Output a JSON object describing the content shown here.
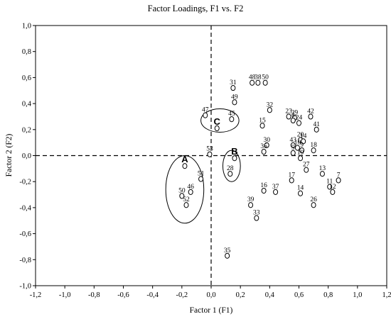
{
  "chart_data": {
    "type": "scatter",
    "title": "Factor Loadings, F1 vs. F2",
    "xlabel": "Factor 1 (F1)",
    "ylabel": "Factor 2 (F2)",
    "xlim": [
      -1.2,
      1.2
    ],
    "ylim": [
      -1.0,
      1.0
    ],
    "x_ticks": [
      "-1,2",
      "-1,0",
      "-0,8",
      "-0,6",
      "-0,4",
      "-0,2",
      "0,0",
      "0,2",
      "0,4",
      "0,6",
      "0,8",
      "1,0",
      "1,2"
    ],
    "y_ticks": [
      "-1,0",
      "-0,8",
      "-0,6",
      "-0,4",
      "-0,2",
      "0,0",
      "0,2",
      "0,4",
      "0,6",
      "0,8",
      "1,0"
    ],
    "grid": false,
    "reference_lines": {
      "x": 0,
      "y": 0,
      "style": "dashed"
    },
    "points": [
      {
        "label": "48",
        "x": 0.28,
        "y": 0.56
      },
      {
        "label": "38",
        "x": 0.32,
        "y": 0.56
      },
      {
        "label": "50",
        "x": 0.37,
        "y": 0.56
      },
      {
        "label": "31",
        "x": 0.15,
        "y": 0.52
      },
      {
        "label": "49",
        "x": 0.16,
        "y": 0.41
      },
      {
        "label": "47",
        "x": -0.04,
        "y": 0.31
      },
      {
        "label": "C",
        "x": 0.04,
        "y": 0.21
      },
      {
        "label": "45",
        "x": 0.14,
        "y": 0.28
      },
      {
        "label": "32",
        "x": 0.4,
        "y": 0.35
      },
      {
        "label": "15",
        "x": 0.35,
        "y": 0.23
      },
      {
        "label": "23",
        "x": 0.53,
        "y": 0.3
      },
      {
        "label": "29",
        "x": 0.57,
        "y": 0.29
      },
      {
        "label": "4",
        "x": 0.56,
        "y": 0.27
      },
      {
        "label": "24",
        "x": 0.6,
        "y": 0.25
      },
      {
        "label": "42",
        "x": 0.68,
        "y": 0.3
      },
      {
        "label": "41",
        "x": 0.72,
        "y": 0.2
      },
      {
        "label": "30",
        "x": 0.38,
        "y": 0.08
      },
      {
        "label": "36",
        "x": 0.36,
        "y": 0.03
      },
      {
        "label": "20",
        "x": 0.61,
        "y": 0.12
      },
      {
        "label": "14",
        "x": 0.63,
        "y": 0.11
      },
      {
        "label": "43",
        "x": 0.56,
        "y": 0.08
      },
      {
        "label": "10",
        "x": 0.59,
        "y": 0.06
      },
      {
        "label": "9",
        "x": 0.62,
        "y": 0.04
      },
      {
        "label": "18",
        "x": 0.7,
        "y": 0.04
      },
      {
        "label": "5",
        "x": 0.56,
        "y": 0.02
      },
      {
        "label": "19",
        "x": 0.61,
        "y": -0.02
      },
      {
        "label": "53",
        "x": -0.01,
        "y": 0.01
      },
      {
        "label": "B",
        "x": 0.16,
        "y": -0.02
      },
      {
        "label": "A",
        "x": -0.18,
        "y": -0.08
      },
      {
        "label": "28",
        "x": 0.13,
        "y": -0.14
      },
      {
        "label": "51",
        "x": -0.07,
        "y": -0.18
      },
      {
        "label": "27",
        "x": 0.65,
        "y": -0.11
      },
      {
        "label": "13",
        "x": 0.76,
        "y": -0.14
      },
      {
        "label": "17",
        "x": 0.55,
        "y": -0.19
      },
      {
        "label": "16",
        "x": 0.36,
        "y": -0.27
      },
      {
        "label": "37",
        "x": 0.44,
        "y": -0.28
      },
      {
        "label": "46",
        "x": -0.14,
        "y": -0.28
      },
      {
        "label": "50",
        "x": -0.2,
        "y": -0.31
      },
      {
        "label": "52",
        "x": -0.17,
        "y": -0.38
      },
      {
        "label": "14",
        "x": 0.61,
        "y": -0.29
      },
      {
        "label": "11",
        "x": 0.81,
        "y": -0.24
      },
      {
        "label": "12",
        "x": 0.83,
        "y": -0.28
      },
      {
        "label": "7",
        "x": 0.87,
        "y": -0.19
      },
      {
        "label": "39",
        "x": 0.27,
        "y": -0.38
      },
      {
        "label": "26",
        "x": 0.7,
        "y": -0.38
      },
      {
        "label": "33",
        "x": 0.31,
        "y": -0.48
      },
      {
        "label": "35",
        "x": 0.11,
        "y": -0.77
      }
    ],
    "ellipses": [
      {
        "cx": 0.06,
        "cy": 0.27,
        "rx": 0.13,
        "ry": 0.09
      },
      {
        "cx": 0.14,
        "cy": -0.08,
        "rx": 0.06,
        "ry": 0.12
      },
      {
        "cx": -0.18,
        "cy": -0.26,
        "rx": 0.13,
        "ry": 0.26
      }
    ]
  }
}
